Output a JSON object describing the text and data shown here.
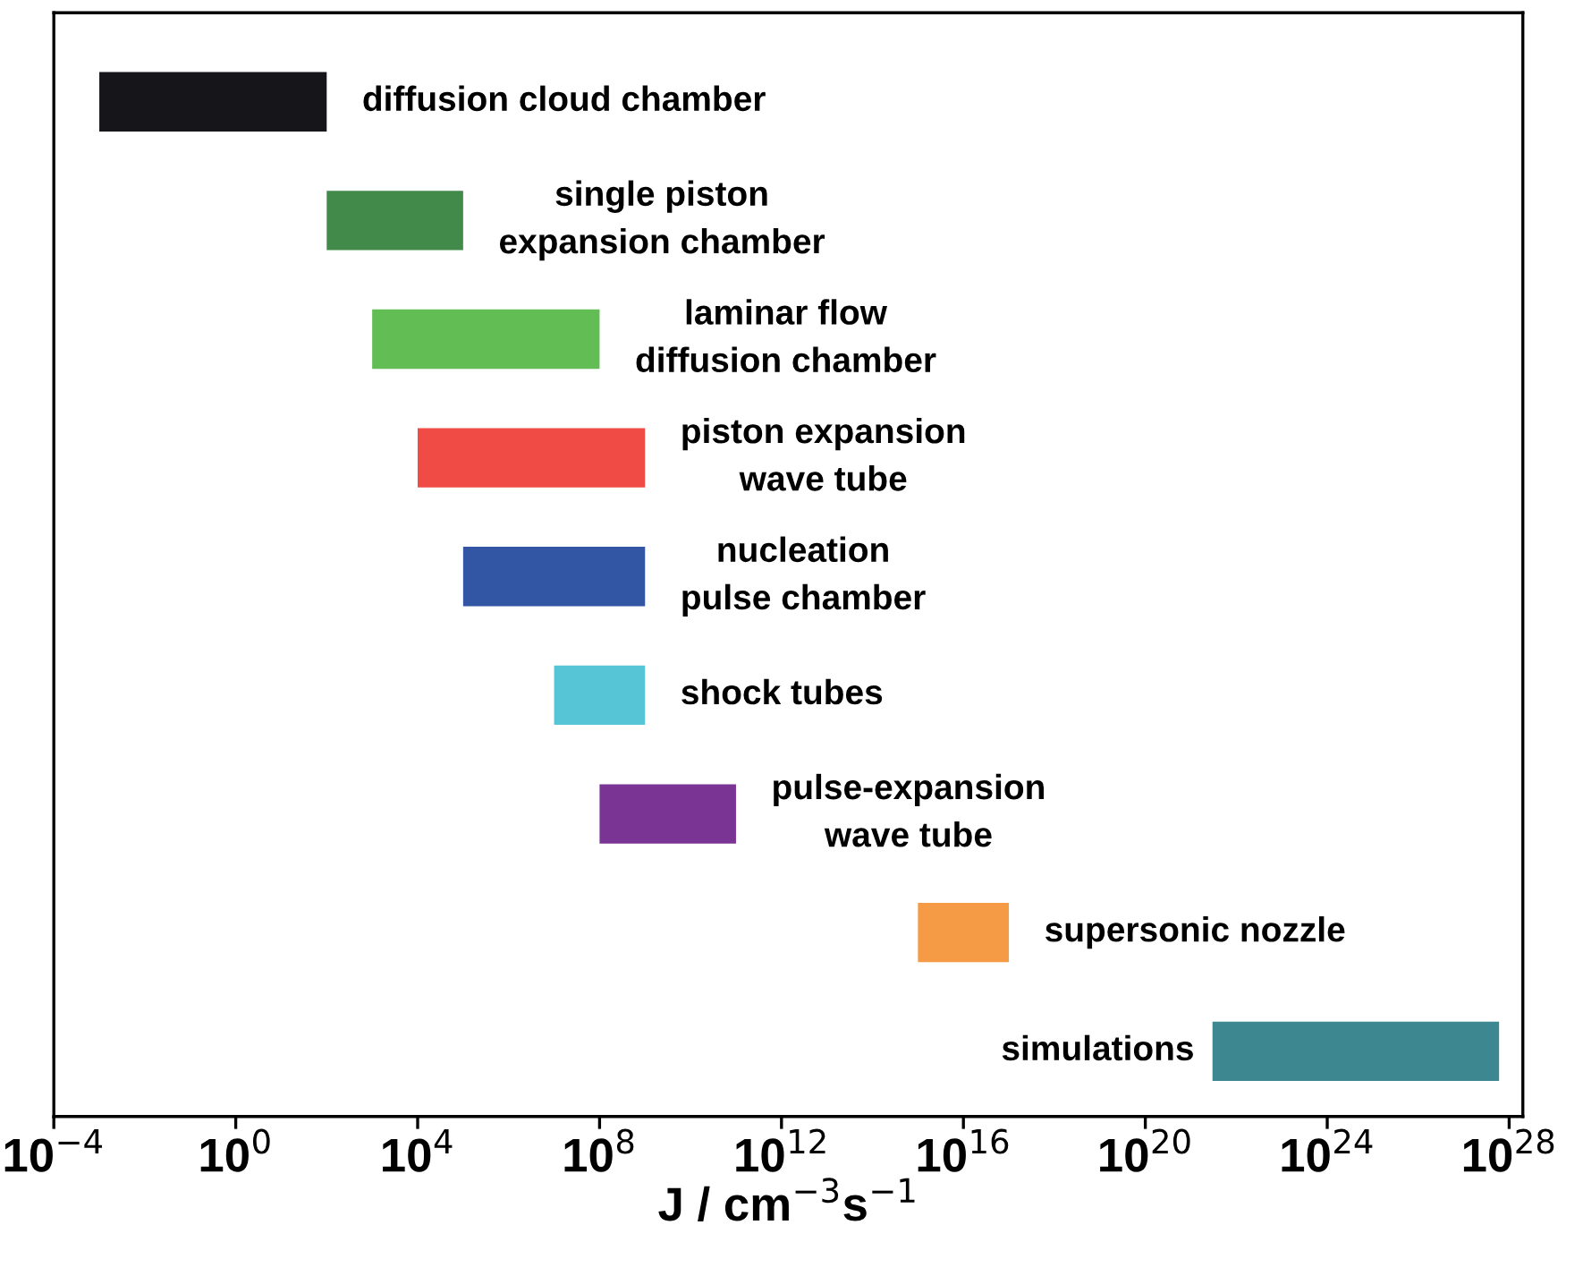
{
  "chart_data": {
    "type": "bar",
    "orientation": "horizontal",
    "log": "x",
    "categories": [
      "diffusion cloud chamber",
      "single piston\nexpansion chamber",
      "laminar flow\ndiffusion chamber",
      "piston expansion\nwave tube",
      "nucleation\npulse chamber",
      "shock tubes",
      "pulse-expansion\nwave tube",
      "supersonic nozzle",
      "simulations"
    ],
    "base": [
      0.001,
      100.0,
      1000.0,
      10000.0,
      100000.0,
      10000000.0,
      100000000.0,
      1000000000000000.0,
      3e+21
    ],
    "values": [
      99.999,
      99900,
      99999000.0,
      999900000.0,
      999990000.0,
      990000000.0,
      99900000000.0,
      9.9e+16,
      6e+27
    ],
    "colors": [
      "#16161a",
      "#428a4a",
      "#62bd55",
      "#f04b44",
      "#3255a4",
      "#56c5d5",
      "#7a3594",
      "#f69b45",
      "#3d8791"
    ],
    "xlim": [
      0.0001,
      2e+28
    ],
    "xticks": [
      {
        "value": 0.0001,
        "label": "10$^{−4}$"
      },
      {
        "value": 1,
        "label": "10$^{0}$"
      },
      {
        "value": 10000.0,
        "label": "10$^{4}$"
      },
      {
        "value": 100000000.0,
        "label": "10$^{8}$"
      },
      {
        "value": 1000000000000.0,
        "label": "10$^{12}$"
      },
      {
        "value": 1e+16,
        "label": "10$^{16}$"
      },
      {
        "value": 1e+20,
        "label": "10$^{20}$"
      },
      {
        "value": 1e+24,
        "label": "10$^{24}$"
      },
      {
        "value": 1e+28,
        "label": "10$^{28}$"
      }
    ],
    "xlabel": "J / cm$^{−3}$s$^{−1}$",
    "tick_labels": "x",
    "grid": false,
    "legend": false
  }
}
